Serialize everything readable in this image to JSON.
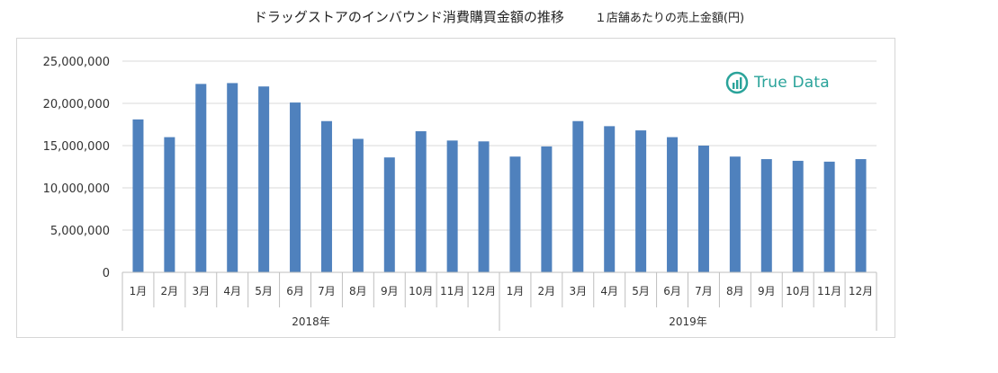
{
  "title": "ドラッグストアのインバウンド消費購買金額の推移",
  "subtitle": "１店舗あたりの売上金額(円)",
  "logo": {
    "text": "True Data",
    "color": "#2aa39a",
    "icon": "bar-chart-circle-logo"
  },
  "bar_color": "#4f81bd",
  "chart_data": {
    "type": "bar",
    "title": "ドラッグストアのインバウンド消費購買金額の推移",
    "subtitle": "１店舗あたりの売上金額(円)",
    "xlabel": "",
    "ylabel": "",
    "ylim": [
      0,
      25000000
    ],
    "yticks": [
      "0",
      "5,000,000",
      "10,000,000",
      "15,000,000",
      "20,000,000",
      "25,000,000"
    ],
    "ytick_values": [
      0,
      5000000,
      10000000,
      15000000,
      20000000,
      25000000
    ],
    "grid": true,
    "legend": "none",
    "groups": [
      {
        "label": "2018年",
        "categories": [
          "1月",
          "2月",
          "3月",
          "4月",
          "5月",
          "6月",
          "7月",
          "8月",
          "9月",
          "10月",
          "11月",
          "12月"
        ]
      },
      {
        "label": "2019年",
        "categories": [
          "1月",
          "2月",
          "3月",
          "4月",
          "5月",
          "6月",
          "7月",
          "8月",
          "9月",
          "10月",
          "11月",
          "12月"
        ]
      }
    ],
    "values": [
      18100000,
      16000000,
      22300000,
      22400000,
      22000000,
      20100000,
      17900000,
      15800000,
      13600000,
      16700000,
      15600000,
      15500000,
      13700000,
      14900000,
      17900000,
      17300000,
      16800000,
      16000000,
      15000000,
      13700000,
      13400000,
      13200000,
      13100000,
      13400000
    ]
  }
}
